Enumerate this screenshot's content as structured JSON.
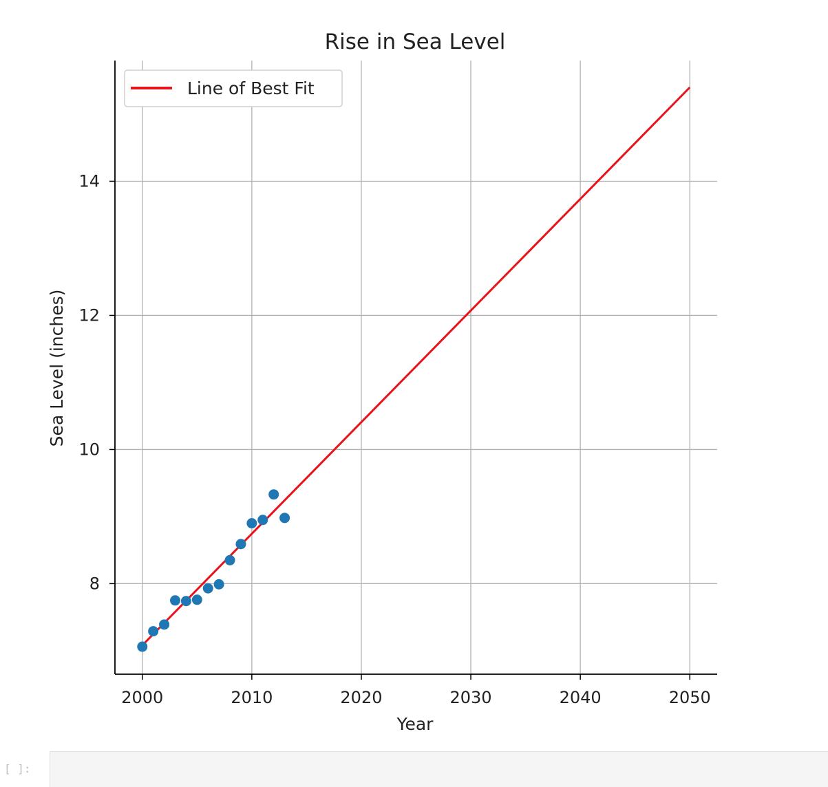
{
  "chart_data": {
    "type": "scatter",
    "title": "Rise in Sea Level",
    "xlabel": "Year",
    "ylabel": "Sea Level (inches)",
    "xlim": [
      1997.5,
      2052.5
    ],
    "ylim": [
      6.65,
      15.8
    ],
    "xticks": [
      2000,
      2010,
      2020,
      2030,
      2040,
      2050
    ],
    "yticks": [
      8,
      10,
      12,
      14
    ],
    "grid": true,
    "legend_position": "upper-left",
    "series": [
      {
        "type": "scatter",
        "color": "#1f77b4",
        "points": [
          {
            "x": 2000,
            "y": 7.06
          },
          {
            "x": 2001,
            "y": 7.29
          },
          {
            "x": 2002,
            "y": 7.39
          },
          {
            "x": 2003,
            "y": 7.75
          },
          {
            "x": 2004,
            "y": 7.74
          },
          {
            "x": 2005,
            "y": 7.76
          },
          {
            "x": 2006,
            "y": 7.93
          },
          {
            "x": 2007,
            "y": 7.99
          },
          {
            "x": 2008,
            "y": 8.35
          },
          {
            "x": 2009,
            "y": 8.59
          },
          {
            "x": 2010,
            "y": 8.9
          },
          {
            "x": 2011,
            "y": 8.95
          },
          {
            "x": 2012,
            "y": 9.33
          },
          {
            "x": 2013,
            "y": 8.98
          }
        ]
      },
      {
        "type": "line",
        "name": "Line of Best Fit",
        "color": "#e8141c",
        "points": [
          {
            "x": 2000,
            "y": 7.08
          },
          {
            "x": 2050,
            "y": 15.4
          }
        ]
      }
    ]
  },
  "cell": {
    "prompt": "[ ]:"
  }
}
